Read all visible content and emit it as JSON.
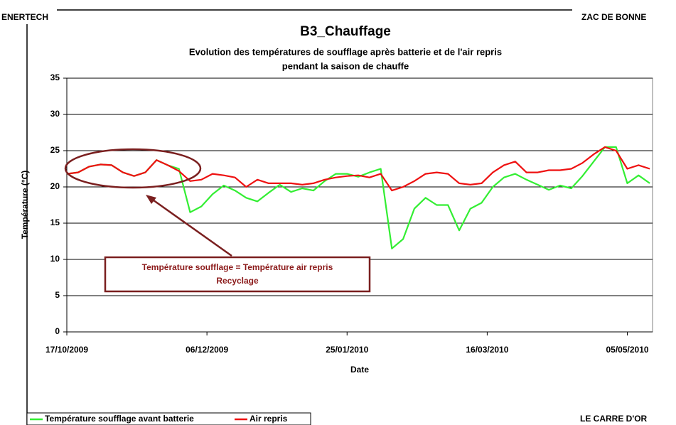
{
  "header": {
    "left": "ENERTECH",
    "right": "ZAC DE BONNE"
  },
  "footer": {
    "right": "LE CARRE D'OR"
  },
  "chart_data": {
    "type": "line",
    "title": "B3_Chauffage",
    "subtitle": [
      "Evolution des températures de soufflage après batterie et de l'air repris",
      "pendant la saison de chauffe"
    ],
    "xlabel": "Date",
    "ylabel": "Température (°C)",
    "annotation": [
      "Température soufflage = Température air repris",
      "Recyclage"
    ],
    "x": [
      "17/10/2009",
      "21/10/2009",
      "25/10/2009",
      "29/10/2009",
      "02/11/2009",
      "06/11/2009",
      "10/11/2009",
      "14/11/2009",
      "18/11/2009",
      "22/11/2009",
      "26/11/2009",
      "30/11/2009",
      "04/12/2009",
      "08/12/2009",
      "12/12/2009",
      "16/12/2009",
      "20/12/2009",
      "24/12/2009",
      "28/12/2009",
      "01/01/2010",
      "05/01/2010",
      "09/01/2010",
      "13/01/2010",
      "17/01/2010",
      "21/01/2010",
      "25/01/2010",
      "29/01/2010",
      "02/02/2010",
      "06/02/2010",
      "10/02/2010",
      "14/02/2010",
      "18/02/2010",
      "22/02/2010",
      "26/02/2010",
      "02/03/2010",
      "06/03/2010",
      "10/03/2010",
      "14/03/2010",
      "18/03/2010",
      "22/03/2010",
      "26/03/2010",
      "30/03/2010",
      "03/04/2010",
      "07/04/2010",
      "11/04/2010",
      "15/04/2010",
      "19/04/2010",
      "23/04/2010",
      "27/04/2010",
      "01/05/2010",
      "05/05/2010",
      "09/05/2010",
      "13/05/2010"
    ],
    "series": [
      {
        "name": "Température soufflage avant batterie",
        "color": "#33ee33",
        "values": [
          21.8,
          22,
          22.8,
          23.1,
          23,
          22,
          21.5,
          22,
          23.7,
          23,
          22.5,
          16.5,
          17.3,
          19,
          20.2,
          19.5,
          18.5,
          18,
          19.2,
          20.3,
          19.3,
          19.8,
          19.5,
          20.8,
          21.8,
          21.8,
          21.4,
          22,
          22.5,
          11.5,
          12.8,
          17,
          18.5,
          17.5,
          17.5,
          14,
          17,
          17.8,
          20,
          21.3,
          21.8,
          21,
          20.3,
          19.6,
          20.2,
          19.8,
          21.5,
          23.5,
          25.5,
          25.5,
          20.5,
          21.6,
          20.5
        ]
      },
      {
        "name": "Air repris",
        "color": "#ee1111",
        "values": [
          21.8,
          22,
          22.8,
          23.1,
          23,
          22,
          21.5,
          22,
          23.7,
          23,
          22.2,
          20.8,
          21,
          21.8,
          21.6,
          21.3,
          20,
          21,
          20.5,
          20.5,
          20.5,
          20.3,
          20.5,
          21,
          21.3,
          21.5,
          21.6,
          21.3,
          21.8,
          19.5,
          20,
          20.8,
          21.8,
          22,
          21.8,
          20.5,
          20.3,
          20.5,
          22,
          23,
          23.5,
          22,
          22,
          22.3,
          22.3,
          22.5,
          23.3,
          24.5,
          25.5,
          25,
          22.5,
          23,
          22.5
        ]
      }
    ],
    "xlim": [
      "17/10/2009",
      "14/05/2010"
    ],
    "xticks": [
      "17/10/2009",
      "06/12/2009",
      "25/01/2010",
      "16/03/2010",
      "05/05/2010"
    ],
    "ylim": [
      0,
      35
    ],
    "yticks": [
      0,
      5,
      10,
      15,
      20,
      25,
      30,
      35
    ],
    "grid": true
  }
}
